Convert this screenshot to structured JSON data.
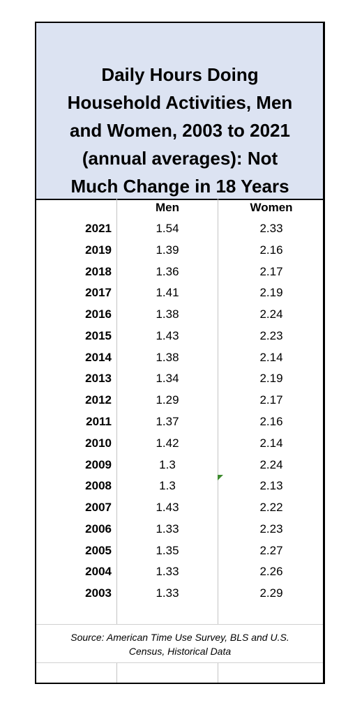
{
  "title_lines": [
    "Daily Hours Doing",
    "Household Activities, Men",
    "and Women, 2003 to 2021",
    "(annual averages): Not",
    "Much Change in 18 Years"
  ],
  "table": {
    "header": {
      "men": "Men",
      "women": "Women"
    },
    "rows": [
      [
        "2021",
        1.54,
        2.33
      ],
      [
        "2019",
        1.39,
        2.16
      ],
      [
        "2018",
        1.36,
        2.17
      ],
      [
        "2017",
        1.41,
        2.19
      ],
      [
        "2016",
        1.38,
        2.24
      ],
      [
        "2015",
        1.43,
        2.23
      ],
      [
        "2014",
        1.38,
        2.14
      ],
      [
        "2013",
        1.34,
        2.19
      ],
      [
        "2012",
        1.29,
        2.17
      ],
      [
        "2011",
        1.37,
        2.16
      ],
      [
        "2010",
        1.42,
        2.14
      ],
      [
        "2009",
        1.3,
        2.24
      ],
      [
        "2008",
        1.3,
        2.13
      ],
      [
        "2007",
        1.43,
        2.22
      ],
      [
        "2006",
        1.33,
        2.23
      ],
      [
        "2005",
        1.35,
        2.27
      ],
      [
        "2004",
        1.33,
        2.26
      ],
      [
        "2003",
        1.33,
        2.29
      ]
    ]
  },
  "source_lines": [
    "Source:  American Time Use Survey, BLS and U.S.",
    "Census, Historical Data"
  ]
}
